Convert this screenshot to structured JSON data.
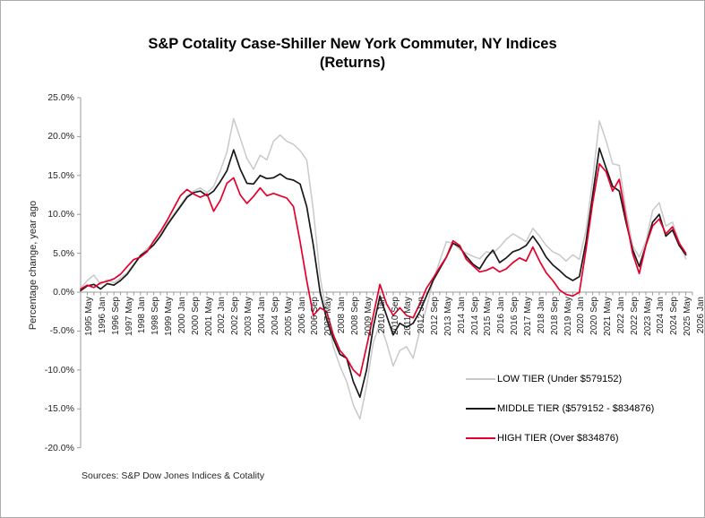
{
  "window": {
    "background": "#ffffff",
    "border_color": "#ababab"
  },
  "header": {
    "title_line1": "S&P Cotality Case-Shiller New York Commuter, NY Indices",
    "title_line2": "(Returns)"
  },
  "y_axis": {
    "title": "Percentage change, year ago",
    "tick_labels": [
      "25.0%",
      "20.0%",
      "15.0%",
      "10.0%",
      "5.0%",
      "0.0%",
      "-5.0%",
      "-10.0%",
      "-15.0%",
      "-20.0%"
    ],
    "max_pct": 25,
    "min_pct": -20,
    "step_pct": 5
  },
  "x_axis": {
    "tick_labels": [
      "1995 May",
      "1996 Jan",
      "1996 Sep",
      "1997 May",
      "1998 Jan",
      "1998 Sep",
      "1999 May",
      "2000 Jan",
      "2000 Sep",
      "2001 May",
      "2002 Jan",
      "2002 Sep",
      "2003 May",
      "2004 Jan",
      "2004 Sep",
      "2005 May",
      "2006 Jan",
      "2006 Sep",
      "2007 May",
      "2008 Jan",
      "2008 Sep",
      "2009 May",
      "2010 Jan",
      "2010 Sep",
      "2011 May",
      "2012 Jan",
      "2012 Sep",
      "2013 May",
      "2014 Jan",
      "2014 Sep",
      "2015 May",
      "2016 Jan",
      "2016 Sep",
      "2017 May",
      "2018 Jan",
      "2018 Sep",
      "2019 May",
      "2020 Jan",
      "2020 Sep",
      "2021 May",
      "2022 Jan",
      "2022 Sep",
      "2023 May",
      "2024 Jan",
      "2024 Sep",
      "2025 May",
      "2026 Jan"
    ],
    "label_every_months": 8,
    "minor_tick_every_months": 4,
    "domain_start": "1995 May",
    "domain_end": "2026 Jan",
    "total_months": 368
  },
  "legend": {
    "items": [
      {
        "label": "LOW TIER (Under $579152)",
        "color": "#c9c9c9",
        "series": "low_tier"
      },
      {
        "label": "MIDDLE TIER ($579152 - $834876)",
        "color": "#1a1a1a",
        "series": "middle_tier"
      },
      {
        "label": "HIGH TIER (Over $834876)",
        "color": "#e4002b",
        "series": "high_tier"
      }
    ]
  },
  "footer": {
    "source_note": "Sources: S&P Dow Jones Indices & Cotality"
  },
  "chart_data": {
    "type": "line",
    "title": "S&P Cotality Case-Shiller New York Commuter, NY Indices (Returns)",
    "xlabel": "",
    "ylabel": "Percentage change, year ago",
    "unit": "percent change vs year ago",
    "ylim": [
      -20,
      25
    ],
    "grid": "zero-line-only",
    "legend_position": "inside lower right",
    "x_step_months": 4,
    "x": [
      "1995 May",
      "1995 Sep",
      "1996 Jan",
      "1996 May",
      "1996 Sep",
      "1997 Jan",
      "1997 May",
      "1997 Sep",
      "1998 Jan",
      "1998 May",
      "1998 Sep",
      "1999 Jan",
      "1999 May",
      "1999 Sep",
      "2000 Jan",
      "2000 May",
      "2000 Sep",
      "2001 Jan",
      "2001 May",
      "2001 Sep",
      "2002 Jan",
      "2002 May",
      "2002 Sep",
      "2003 Jan",
      "2003 May",
      "2003 Sep",
      "2004 Jan",
      "2004 May",
      "2004 Sep",
      "2005 Jan",
      "2005 May",
      "2005 Sep",
      "2006 Jan",
      "2006 May",
      "2006 Sep",
      "2007 Jan",
      "2007 May",
      "2007 Sep",
      "2008 Jan",
      "2008 May",
      "2008 Sep",
      "2009 Jan",
      "2009 May",
      "2009 Sep",
      "2010 Jan",
      "2010 May",
      "2010 Sep",
      "2011 Jan",
      "2011 May",
      "2011 Sep",
      "2012 Jan",
      "2012 May",
      "2012 Sep",
      "2013 Jan",
      "2013 May",
      "2013 Sep",
      "2014 Jan",
      "2014 May",
      "2014 Sep",
      "2015 Jan",
      "2015 May",
      "2015 Sep",
      "2016 Jan",
      "2016 May",
      "2016 Sep",
      "2017 Jan",
      "2017 May",
      "2017 Sep",
      "2018 Jan",
      "2018 May",
      "2018 Sep",
      "2019 Jan",
      "2019 May",
      "2019 Sep",
      "2020 Jan",
      "2020 May",
      "2020 Sep",
      "2021 Jan",
      "2021 May",
      "2021 Sep",
      "2022 Jan",
      "2022 May",
      "2022 Sep",
      "2023 Jan",
      "2023 May",
      "2023 Sep",
      "2024 Jan",
      "2024 May",
      "2024 Sep",
      "2025 Jan",
      "2025 May",
      "2025 Sep"
    ],
    "series": [
      {
        "name": "LOW TIER (Under $579152)",
        "color": "#c9c9c9",
        "values": [
          0.5,
          1.5,
          2.2,
          1.0,
          1.6,
          1.2,
          1.8,
          2.5,
          3.6,
          4.8,
          5.6,
          6.4,
          7.4,
          8.8,
          10.0,
          11.2,
          12.4,
          13.0,
          13.4,
          12.8,
          13.6,
          15.6,
          18.0,
          22.3,
          19.8,
          17.2,
          15.8,
          17.6,
          17.0,
          19.4,
          20.2,
          19.4,
          19.0,
          18.2,
          17.0,
          10.5,
          2.0,
          -3.0,
          -7.0,
          -9.5,
          -11.5,
          -14.5,
          -16.3,
          -12.0,
          -6.5,
          -4.0,
          -6.5,
          -9.5,
          -7.5,
          -7.0,
          -8.5,
          -5.0,
          -2.0,
          1.5,
          4.0,
          6.5,
          6.3,
          5.5,
          5.0,
          4.6,
          4.3,
          5.2,
          5.0,
          5.8,
          6.8,
          7.5,
          7.0,
          6.5,
          8.2,
          7.2,
          6.0,
          5.2,
          4.8,
          4.0,
          4.8,
          4.2,
          8.0,
          14.5,
          22.0,
          19.5,
          16.5,
          16.3,
          10.5,
          6.0,
          4.5,
          6.5,
          10.5,
          11.5,
          8.5,
          9.0,
          6.5,
          4.3
        ]
      },
      {
        "name": "MIDDLE TIER ($579152 - $834876)",
        "color": "#1a1a1a",
        "values": [
          0.2,
          0.8,
          1.0,
          0.4,
          1.1,
          0.9,
          1.5,
          2.3,
          3.5,
          4.7,
          5.3,
          6.1,
          7.2,
          8.6,
          9.8,
          11.0,
          12.2,
          12.8,
          13.0,
          12.4,
          13.0,
          14.2,
          15.6,
          18.3,
          15.8,
          14.0,
          13.9,
          15.0,
          14.6,
          14.7,
          15.2,
          14.6,
          14.4,
          13.9,
          11.0,
          6.0,
          0.0,
          -3.5,
          -6.0,
          -8.0,
          -8.5,
          -11.5,
          -13.5,
          -10.0,
          -4.5,
          -0.5,
          -3.0,
          -5.5,
          -4.0,
          -4.5,
          -4.0,
          -2.5,
          -0.5,
          1.5,
          3.0,
          4.5,
          6.3,
          5.8,
          4.6,
          3.6,
          3.0,
          4.4,
          5.4,
          3.8,
          4.4,
          5.2,
          5.5,
          6.0,
          7.2,
          6.0,
          4.5,
          3.5,
          2.8,
          2.0,
          1.5,
          2.0,
          6.5,
          12.5,
          18.5,
          16.0,
          13.6,
          13.0,
          9.0,
          5.5,
          3.3,
          6.0,
          9.0,
          10.0,
          7.2,
          8.0,
          6.0,
          4.8
        ]
      },
      {
        "name": "HIGH TIER (Over $834876)",
        "color": "#e4002b",
        "values": [
          0.4,
          0.9,
          0.6,
          1.2,
          1.4,
          1.7,
          2.3,
          3.3,
          4.2,
          4.5,
          5.2,
          6.6,
          7.8,
          9.2,
          10.8,
          12.4,
          13.2,
          12.6,
          12.2,
          12.6,
          10.4,
          11.8,
          14.0,
          14.7,
          12.5,
          11.4,
          12.3,
          13.4,
          12.4,
          12.7,
          12.4,
          12.1,
          11.0,
          6.5,
          1.5,
          -3.0,
          -2.0,
          -2.5,
          -5.5,
          -7.5,
          -8.5,
          -10.0,
          -10.8,
          -7.0,
          -3.0,
          1.0,
          -1.5,
          -3.0,
          -2.0,
          -3.0,
          -3.3,
          -1.5,
          0.5,
          1.8,
          3.2,
          4.5,
          6.6,
          6.0,
          4.2,
          3.4,
          2.6,
          2.8,
          3.2,
          2.6,
          3.0,
          3.8,
          4.4,
          4.0,
          5.8,
          4.0,
          2.5,
          1.5,
          0.3,
          -0.3,
          -0.5,
          0.0,
          5.5,
          11.5,
          16.5,
          15.5,
          13.0,
          14.5,
          9.5,
          5.0,
          2.4,
          6.0,
          8.5,
          9.4,
          7.5,
          8.4,
          6.3,
          5.0
        ]
      }
    ]
  }
}
